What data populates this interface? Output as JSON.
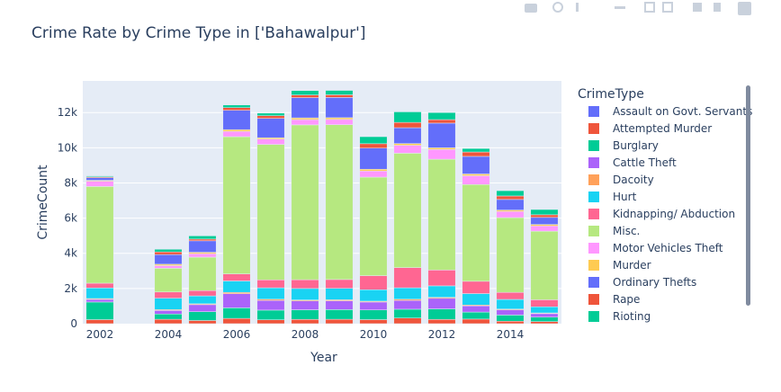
{
  "chart_data": {
    "type": "bar",
    "barmode": "stack",
    "title": "Crime Rate by Crime Type in ['Bahawalpur']",
    "xlabel": "Year",
    "ylabel": "CrimeCount",
    "ylim": [
      0,
      13800
    ],
    "xlim": [
      2001.5,
      2015.5
    ],
    "x_ticks": [
      2002,
      2004,
      2006,
      2008,
      2010,
      2012,
      2014
    ],
    "y_ticks": [
      0,
      2000,
      4000,
      6000,
      8000,
      10000,
      12000
    ],
    "y_tick_labels": [
      "0",
      "2k",
      "4k",
      "6k",
      "8k",
      "10k",
      "12k"
    ],
    "legend_title": "CrimeType",
    "legend_position": "right",
    "x": [
      2002,
      2004,
      2005,
      2006,
      2007,
      2008,
      2009,
      2010,
      2011,
      2012,
      2013,
      2014,
      2015
    ],
    "series": [
      {
        "name": "Assault on Govt. Servants",
        "color": "#636efa",
        "values": [
          0,
          0,
          0,
          0,
          0,
          0,
          0,
          0,
          0,
          0,
          0,
          0,
          0
        ]
      },
      {
        "name": "Attempted Murder",
        "color": "#EF553B",
        "values": [
          230,
          250,
          180,
          300,
          220,
          240,
          250,
          230,
          320,
          240,
          260,
          140,
          120
        ]
      },
      {
        "name": "Burglary",
        "color": "#00cc96",
        "values": [
          1000,
          300,
          500,
          600,
          550,
          550,
          550,
          550,
          500,
          600,
          400,
          350,
          250
        ]
      },
      {
        "name": "Cattle Theft",
        "color": "#ab63fa",
        "values": [
          150,
          200,
          400,
          800,
          550,
          500,
          500,
          450,
          500,
          600,
          350,
          300,
          200
        ]
      },
      {
        "name": "Dacoity",
        "color": "#FFA15A",
        "values": [
          50,
          50,
          50,
          80,
          70,
          60,
          60,
          50,
          70,
          60,
          50,
          40,
          40
        ]
      },
      {
        "name": "Hurt",
        "color": "#19d3f3",
        "values": [
          600,
          650,
          450,
          650,
          650,
          650,
          650,
          650,
          650,
          650,
          650,
          550,
          350
        ]
      },
      {
        "name": "Kidnapping/ Abduction",
        "color": "#FF6692",
        "values": [
          270,
          350,
          300,
          400,
          450,
          500,
          500,
          800,
          1150,
          900,
          700,
          400,
          400
        ]
      },
      {
        "name": "Misc.",
        "color": "#B6E880",
        "values": [
          5500,
          1350,
          1900,
          7800,
          7700,
          8800,
          8800,
          5600,
          6500,
          6300,
          5500,
          4250,
          3900
        ]
      },
      {
        "name": "Motor Vehicles Theft",
        "color": "#FF97FF",
        "values": [
          300,
          150,
          200,
          300,
          300,
          300,
          300,
          350,
          450,
          550,
          500,
          350,
          300
        ]
      },
      {
        "name": "Murder",
        "color": "#FECB52",
        "values": [
          50,
          80,
          80,
          100,
          80,
          100,
          100,
          100,
          100,
          100,
          100,
          80,
          80
        ]
      },
      {
        "name": "Ordinary Thefts",
        "color": "#636efa",
        "values": [
          150,
          550,
          650,
          1100,
          1100,
          1150,
          1150,
          1200,
          900,
          1400,
          1000,
          600,
          400
        ]
      },
      {
        "name": "Rape",
        "color": "#EF553B",
        "values": [
          50,
          150,
          100,
          150,
          150,
          150,
          150,
          250,
          300,
          200,
          250,
          200,
          150
        ]
      },
      {
        "name": "Rioting",
        "color": "#00cc96",
        "values": [
          50,
          150,
          180,
          150,
          150,
          250,
          250,
          400,
          600,
          400,
          200,
          300,
          300
        ]
      }
    ]
  }
}
